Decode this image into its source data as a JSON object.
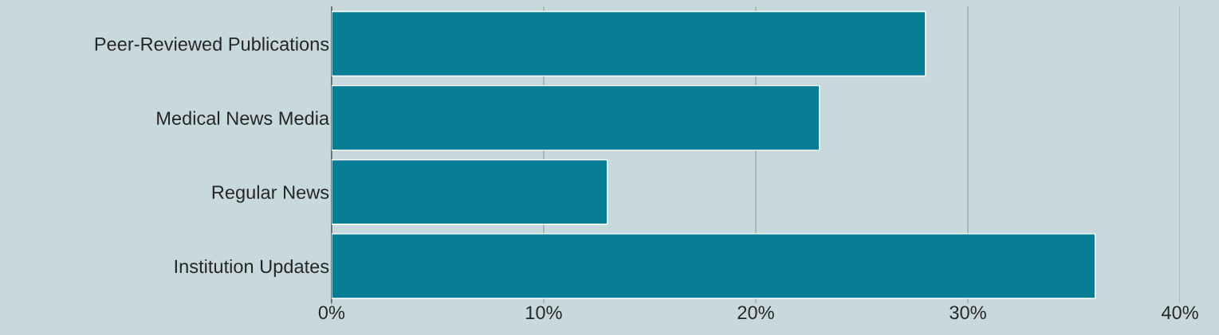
{
  "chart_data": {
    "type": "bar",
    "orientation": "horizontal",
    "categories": [
      "Peer-Reviewed Publications",
      "Medical News Media",
      "Regular News",
      "Institution Updates"
    ],
    "values": [
      28,
      23,
      13,
      36
    ],
    "color": "#087d96",
    "xlim": [
      0,
      40
    ],
    "xticks": [
      {
        "value": 0,
        "label": "0%"
      },
      {
        "value": 10,
        "label": "10%"
      },
      {
        "value": 20,
        "label": "20%"
      },
      {
        "value": 30,
        "label": "30%"
      },
      {
        "value": 40,
        "label": "40%"
      }
    ],
    "grid": "x",
    "legend": false
  }
}
